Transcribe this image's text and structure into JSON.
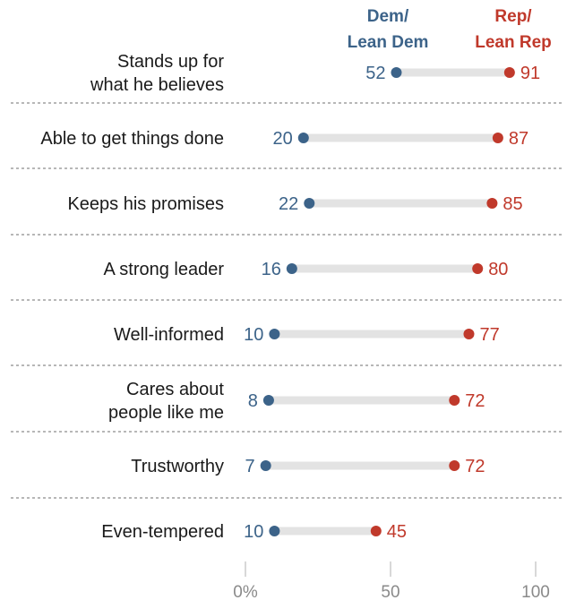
{
  "colors": {
    "dem": "#3c6389",
    "rep": "#c0392b",
    "track": "#e3e3e3",
    "divider": "#8c8c8c",
    "tick": "#8a8a8a",
    "text": "#1a1a1a"
  },
  "legend": {
    "dem": [
      "Dem/",
      "Lean Dem"
    ],
    "rep": [
      "Rep/",
      "Lean Rep"
    ]
  },
  "chart_data": {
    "type": "dot",
    "categories": [
      [
        "Stands up for",
        "what he believes"
      ],
      [
        "Able to get things done"
      ],
      [
        "Keeps his promises"
      ],
      [
        "A strong leader"
      ],
      [
        "Well-informed"
      ],
      [
        "Cares about",
        "people like me"
      ],
      [
        "Trustworthy"
      ],
      [
        "Even-tempered"
      ]
    ],
    "series": [
      {
        "name": "Dem/Lean Dem",
        "values": [
          52,
          20,
          22,
          16,
          10,
          8,
          7,
          10
        ]
      },
      {
        "name": "Rep/Lean Rep",
        "values": [
          91,
          87,
          85,
          80,
          77,
          72,
          72,
          45
        ]
      }
    ],
    "xlim": [
      0,
      100
    ],
    "xticks": [
      "0%",
      "50",
      "100"
    ],
    "xtick_values": [
      0,
      50,
      100
    ]
  }
}
